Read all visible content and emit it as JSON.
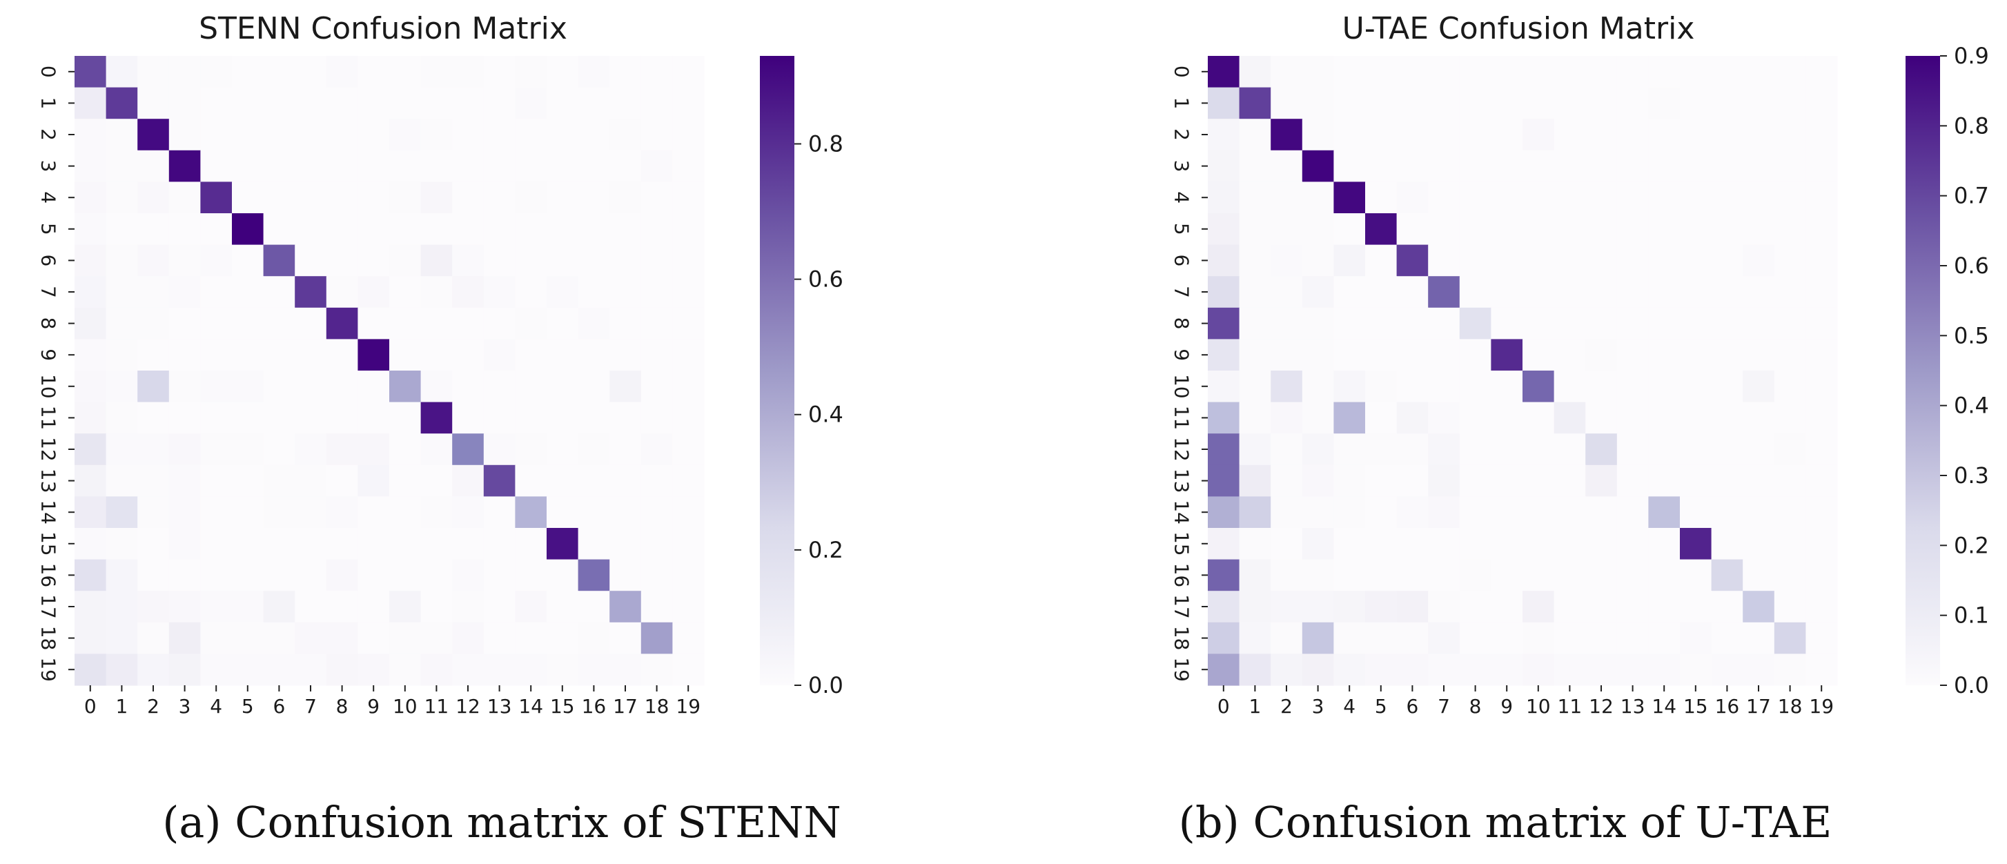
{
  "colors": {
    "low": "#fcfbfd",
    "mid": "#807dba",
    "high": "#3f007d",
    "text": "#1a1a1a"
  },
  "chart_data": [
    {
      "type": "heatmap",
      "title": "STENN Confusion Matrix",
      "caption": "(a)  Confusion matrix of STENN",
      "categories": [
        "0",
        "1",
        "2",
        "3",
        "4",
        "5",
        "6",
        "7",
        "8",
        "9",
        "10",
        "11",
        "12",
        "13",
        "14",
        "15",
        "16",
        "17",
        "18",
        "19"
      ],
      "vmin": 0,
      "vmax": 0.93,
      "colorbar_ticks": [
        0.0,
        0.2,
        0.4,
        0.6,
        0.8
      ],
      "colorbar_labels": [
        "0.0",
        "0.2",
        "0.4",
        "0.6",
        "0.8"
      ],
      "matrix": [
        [
          0.72,
          0.05,
          0.01,
          0.01,
          0.01,
          0,
          0,
          0,
          0.02,
          0,
          0,
          0.01,
          0.01,
          0,
          0.01,
          0,
          0.02,
          0,
          0,
          0
        ],
        [
          0.12,
          0.76,
          0.01,
          0.01,
          0,
          0,
          0,
          0,
          0,
          0,
          0,
          0,
          0,
          0,
          0.02,
          0,
          0,
          0,
          0,
          0
        ],
        [
          0.02,
          0.01,
          0.9,
          0.01,
          0,
          0,
          0,
          0,
          0,
          0,
          0.02,
          0.01,
          0,
          0,
          0,
          0,
          0,
          0.01,
          0,
          0
        ],
        [
          0.02,
          0.01,
          0.01,
          0.91,
          0,
          0,
          0,
          0,
          0,
          0,
          0,
          0,
          0,
          0,
          0,
          0,
          0,
          0,
          0.02,
          0
        ],
        [
          0.03,
          0.01,
          0.03,
          0.01,
          0.8,
          0,
          0,
          0,
          0,
          0,
          0.01,
          0.04,
          0,
          0,
          0.01,
          0,
          0,
          0.01,
          0,
          0
        ],
        [
          0.02,
          0,
          0,
          0,
          0,
          0.93,
          0,
          0,
          0,
          0,
          0,
          0,
          0,
          0,
          0,
          0,
          0,
          0,
          0,
          0
        ],
        [
          0.04,
          0.01,
          0.03,
          0.01,
          0.02,
          0,
          0.68,
          0,
          0,
          0,
          0.01,
          0.08,
          0.02,
          0,
          0,
          0,
          0,
          0,
          0,
          0
        ],
        [
          0.05,
          0.01,
          0.01,
          0.02,
          0,
          0,
          0,
          0.76,
          0.01,
          0.03,
          0,
          0.01,
          0.04,
          0.02,
          0,
          0.02,
          0,
          0,
          0,
          0
        ],
        [
          0.07,
          0.01,
          0.01,
          0,
          0,
          0,
          0,
          0,
          0.82,
          0,
          0,
          0,
          0,
          0,
          0.01,
          0,
          0.02,
          0,
          0,
          0
        ],
        [
          0.02,
          0.01,
          0,
          0,
          0,
          0,
          0,
          0,
          0,
          0.92,
          0,
          0,
          0,
          0.02,
          0,
          0,
          0,
          0,
          0,
          0
        ],
        [
          0.03,
          0.02,
          0.24,
          0.01,
          0.02,
          0.02,
          0,
          0,
          0,
          0,
          0.42,
          0.02,
          0,
          0,
          0,
          0,
          0,
          0.07,
          0,
          0
        ],
        [
          0.04,
          0.01,
          0,
          0,
          0,
          0,
          0,
          0,
          0,
          0,
          0,
          0.87,
          0,
          0,
          0,
          0,
          0,
          0,
          0,
          0
        ],
        [
          0.16,
          0.02,
          0.02,
          0.03,
          0.01,
          0.01,
          0,
          0.02,
          0.04,
          0.04,
          0,
          0.02,
          0.55,
          0.02,
          0.01,
          0,
          0.01,
          0,
          0.02,
          0
        ],
        [
          0.07,
          0.01,
          0.01,
          0.02,
          0,
          0,
          0.01,
          0.01,
          0,
          0.05,
          0,
          0,
          0.04,
          0.72,
          0,
          0,
          0,
          0,
          0,
          0
        ],
        [
          0.12,
          0.18,
          0.01,
          0.02,
          0,
          0,
          0.01,
          0.01,
          0.02,
          0,
          0,
          0.01,
          0.02,
          0,
          0.38,
          0,
          0,
          0,
          0,
          0
        ],
        [
          0.02,
          0.01,
          0,
          0.02,
          0,
          0,
          0,
          0,
          0,
          0,
          0,
          0,
          0,
          0,
          0,
          0.88,
          0,
          0,
          0,
          0
        ],
        [
          0.19,
          0.05,
          0,
          0,
          0,
          0,
          0,
          0,
          0.03,
          0,
          0,
          0,
          0.02,
          0,
          0,
          0,
          0.62,
          0,
          0,
          0
        ],
        [
          0.06,
          0.05,
          0.04,
          0.03,
          0.02,
          0.02,
          0.07,
          0,
          0,
          0,
          0.06,
          0,
          0.01,
          0,
          0.03,
          0,
          0,
          0.42,
          0,
          0
        ],
        [
          0.06,
          0.05,
          0.01,
          0.11,
          0.01,
          0.01,
          0.01,
          0.03,
          0.03,
          0,
          0.01,
          0.01,
          0.03,
          0,
          0,
          0,
          0.01,
          0,
          0.45,
          0
        ],
        [
          0.17,
          0.12,
          0.05,
          0.07,
          0.02,
          0.02,
          0.02,
          0.02,
          0.04,
          0.03,
          0.01,
          0.03,
          0.02,
          0.02,
          0.02,
          0.01,
          0.02,
          0.02,
          0.01,
          0
        ]
      ]
    },
    {
      "type": "heatmap",
      "title": "U-TAE Confusion Matrix",
      "caption": "(b)  Confusion matrix of U-TAE",
      "categories": [
        "0",
        "1",
        "2",
        "3",
        "4",
        "5",
        "6",
        "7",
        "8",
        "9",
        "10",
        "11",
        "12",
        "13",
        "14",
        "15",
        "16",
        "17",
        "18",
        "19"
      ],
      "vmin": 0,
      "vmax": 0.9,
      "colorbar_ticks": [
        0.0,
        0.1,
        0.2,
        0.3,
        0.4,
        0.5,
        0.6,
        0.7,
        0.8,
        0.9
      ],
      "colorbar_labels": [
        "0.0",
        "0.1",
        "0.2",
        "0.3",
        "0.4",
        "0.5",
        "0.6",
        "0.7",
        "0.8",
        "0.9"
      ],
      "matrix": [
        [
          0.88,
          0.05,
          0.01,
          0.01,
          0,
          0,
          0,
          0,
          0,
          0,
          0,
          0,
          0,
          0,
          0,
          0,
          0,
          0,
          0,
          0
        ],
        [
          0.22,
          0.72,
          0.01,
          0.01,
          0,
          0,
          0,
          0,
          0,
          0,
          0,
          0,
          0,
          0,
          0.01,
          0,
          0,
          0,
          0,
          0
        ],
        [
          0.04,
          0.01,
          0.88,
          0.01,
          0,
          0,
          0,
          0,
          0,
          0,
          0.03,
          0,
          0,
          0,
          0,
          0,
          0,
          0,
          0,
          0
        ],
        [
          0.05,
          0.01,
          0.01,
          0.89,
          0,
          0,
          0,
          0,
          0,
          0,
          0,
          0,
          0,
          0,
          0,
          0,
          0,
          0,
          0,
          0
        ],
        [
          0.06,
          0.01,
          0.01,
          0.01,
          0.88,
          0,
          0.02,
          0,
          0,
          0,
          0,
          0,
          0,
          0,
          0,
          0,
          0,
          0,
          0,
          0
        ],
        [
          0.08,
          0.01,
          0.01,
          0.01,
          0,
          0.86,
          0,
          0,
          0,
          0,
          0,
          0,
          0,
          0,
          0,
          0,
          0,
          0,
          0,
          0
        ],
        [
          0.12,
          0.01,
          0.02,
          0.01,
          0.06,
          0,
          0.73,
          0,
          0,
          0,
          0,
          0,
          0,
          0,
          0,
          0,
          0,
          0.02,
          0,
          0
        ],
        [
          0.2,
          0.01,
          0.01,
          0.04,
          0,
          0,
          0,
          0.63,
          0,
          0,
          0,
          0,
          0,
          0,
          0,
          0,
          0,
          0,
          0,
          0
        ],
        [
          0.7,
          0.01,
          0.01,
          0.01,
          0,
          0,
          0,
          0,
          0.18,
          0,
          0,
          0,
          0,
          0,
          0,
          0,
          0,
          0,
          0,
          0
        ],
        [
          0.16,
          0.01,
          0.01,
          0.01,
          0,
          0,
          0,
          0,
          0,
          0.78,
          0,
          0,
          0.01,
          0,
          0,
          0,
          0,
          0,
          0,
          0
        ],
        [
          0.04,
          0.01,
          0.17,
          0.01,
          0.04,
          0.01,
          0,
          0,
          0,
          0,
          0.62,
          0,
          0,
          0,
          0,
          0,
          0,
          0.05,
          0,
          0
        ],
        [
          0.33,
          0.01,
          0.03,
          0.01,
          0.35,
          0,
          0.05,
          0.02,
          0,
          0,
          0,
          0.1,
          0,
          0,
          0,
          0,
          0,
          0,
          0,
          0
        ],
        [
          0.62,
          0.04,
          0.01,
          0.04,
          0.01,
          0.01,
          0.01,
          0.04,
          0,
          0,
          0,
          0,
          0.21,
          0,
          0,
          0,
          0,
          0,
          0.01,
          0
        ],
        [
          0.62,
          0.12,
          0.01,
          0.03,
          0.01,
          0,
          0,
          0.05,
          0,
          0,
          0,
          0,
          0.08,
          0,
          0,
          0,
          0,
          0,
          0,
          0
        ],
        [
          0.38,
          0.26,
          0.01,
          0.01,
          0.01,
          0,
          0.02,
          0.03,
          0,
          0,
          0,
          0,
          0,
          0,
          0.32,
          0,
          0,
          0,
          0,
          0
        ],
        [
          0.07,
          0.01,
          0,
          0.04,
          0,
          0,
          0,
          0,
          0,
          0,
          0,
          0,
          0,
          0,
          0,
          0.8,
          0,
          0,
          0,
          0
        ],
        [
          0.63,
          0.05,
          0.01,
          0.01,
          0,
          0,
          0,
          0,
          0.01,
          0,
          0,
          0,
          0,
          0,
          0,
          0,
          0.23,
          0,
          0,
          0
        ],
        [
          0.16,
          0.05,
          0.04,
          0.04,
          0.05,
          0.07,
          0.08,
          0.01,
          0,
          0,
          0.08,
          0,
          0,
          0,
          0,
          0,
          0,
          0.28,
          0,
          0
        ],
        [
          0.27,
          0.04,
          0.01,
          0.3,
          0.01,
          0.01,
          0.01,
          0.04,
          0,
          0,
          0.01,
          0,
          0,
          0,
          0,
          0.02,
          0,
          0,
          0.24,
          0
        ],
        [
          0.41,
          0.14,
          0.06,
          0.08,
          0.04,
          0.03,
          0.03,
          0.02,
          0.02,
          0.02,
          0.03,
          0.02,
          0.02,
          0.02,
          0.02,
          0.01,
          0.02,
          0.02,
          0.01,
          0
        ]
      ]
    }
  ]
}
